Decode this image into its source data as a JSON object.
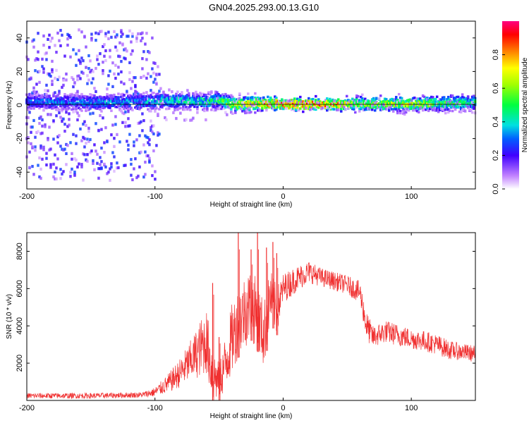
{
  "title": "GN04.2025.293.00.13.G10",
  "chart_data": [
    {
      "type": "heatmap",
      "xlabel": "Height of straight line (km)",
      "ylabel": "Frequency (Hz)",
      "xlim": [
        -200,
        150
      ],
      "ylim": [
        -50,
        50
      ],
      "xticks": [
        -200,
        -100,
        0,
        100
      ],
      "yticks": [
        -40,
        -20,
        0,
        20,
        40
      ],
      "colorbar": {
        "label": "Normalized spectral amplitude",
        "range": [
          0.0,
          1.0
        ],
        "ticks": [
          0.0,
          0.2,
          0.4,
          0.6,
          0.8
        ]
      },
      "trace": {
        "x": [
          -200,
          -150,
          -100,
          -95,
          -80,
          -60,
          -50,
          -40,
          -20,
          0,
          20,
          40,
          60,
          80,
          100,
          120,
          150
        ],
        "peak_freq": [
          2,
          1.5,
          2,
          3,
          2.5,
          2,
          3,
          0.5,
          1,
          0.5,
          0.5,
          0.5,
          0.5,
          0.5,
          0.5,
          1,
          1.5
        ],
        "amplitude": [
          0.35,
          0.4,
          0.45,
          0.5,
          0.5,
          0.55,
          0.6,
          0.75,
          0.9,
          1.0,
          1.0,
          0.95,
          0.7,
          0.75,
          0.8,
          0.65,
          0.55
        ],
        "spread_hz": [
          45,
          45,
          45,
          10,
          9,
          9,
          8,
          5,
          4,
          3,
          3,
          3,
          4,
          4,
          4,
          4,
          5
        ]
      }
    },
    {
      "type": "line",
      "xlabel": "Height of straight line (km)",
      "ylabel": "SNR (10 * v/v)",
      "xlim": [
        -200,
        150
      ],
      "ylim": [
        0,
        9000
      ],
      "xticks": [
        -200,
        -100,
        0,
        100
      ],
      "yticks": [
        2000,
        4000,
        6000,
        8000
      ],
      "color": "#f03030",
      "series": {
        "x": [
          -200,
          -150,
          -110,
          -100,
          -90,
          -80,
          -70,
          -60,
          -55,
          -50,
          -45,
          -40,
          -35,
          -30,
          -25,
          -20,
          -15,
          -10,
          -5,
          0,
          10,
          20,
          30,
          40,
          50,
          60,
          65,
          70,
          80,
          90,
          100,
          110,
          120,
          130,
          140,
          150
        ],
        "y": [
          250,
          250,
          300,
          450,
          900,
          1500,
          2300,
          3200,
          1400,
          1000,
          2000,
          3300,
          4200,
          4800,
          5200,
          4500,
          3500,
          5600,
          4800,
          6000,
          6500,
          6900,
          6600,
          6400,
          6200,
          5800,
          4000,
          3400,
          3700,
          3500,
          3300,
          3200,
          3000,
          2700,
          2600,
          2500
        ],
        "amplitude": [
          150,
          150,
          150,
          250,
          500,
          800,
          1200,
          1800,
          1500,
          1000,
          1500,
          1900,
          1900,
          2000,
          2000,
          1900,
          1800,
          1500,
          1300,
          800,
          700,
          600,
          500,
          500,
          500,
          600,
          800,
          600,
          600,
          600,
          550,
          550,
          550,
          500,
          450,
          450
        ],
        "spikes": [
          {
            "x": -55,
            "y": 6300
          },
          {
            "x": -50,
            "y": 3400
          },
          {
            "x": -35,
            "y": 9000
          },
          {
            "x": -25,
            "y": 8100
          },
          {
            "x": -20,
            "y": 9000
          },
          {
            "x": -13,
            "y": 8200
          },
          {
            "x": -8,
            "y": 8500
          },
          {
            "x": -5,
            "y": 7900
          }
        ]
      }
    }
  ]
}
